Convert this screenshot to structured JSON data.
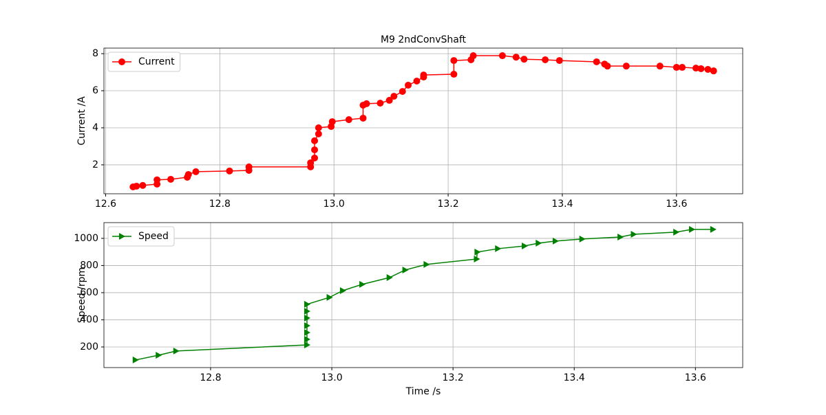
{
  "chart_data": [
    {
      "type": "line",
      "title": "M9 2ndConvShaft",
      "ylabel": "Current /A",
      "grid": true,
      "legend": "upper left",
      "x": [
        12.648,
        12.654,
        12.665,
        12.69,
        12.69,
        12.714,
        12.743,
        12.745,
        12.758,
        12.817,
        12.851,
        12.851,
        12.959,
        12.959,
        12.966,
        12.966,
        12.966,
        12.973,
        12.973,
        12.995,
        12.997,
        13.026,
        13.051,
        13.051,
        13.057,
        13.081,
        13.097,
        13.105,
        13.12,
        13.13,
        13.145,
        13.157,
        13.157,
        13.21,
        13.21,
        13.24,
        13.244,
        13.295,
        13.319,
        13.333,
        13.37,
        13.395,
        13.46,
        13.474,
        13.479,
        13.512,
        13.571,
        13.6,
        13.61,
        13.634,
        13.643,
        13.655,
        13.665
      ],
      "series": [
        {
          "name": "Current",
          "color": "#ff0000",
          "marker": "circle",
          "values": [
            0.81,
            0.85,
            0.89,
            0.96,
            1.19,
            1.22,
            1.33,
            1.48,
            1.63,
            1.67,
            1.7,
            1.89,
            1.89,
            2.11,
            2.37,
            2.81,
            3.3,
            3.67,
            4.0,
            4.07,
            4.33,
            4.44,
            4.52,
            5.22,
            5.3,
            5.33,
            5.48,
            5.7,
            5.96,
            6.3,
            6.52,
            6.74,
            6.85,
            6.89,
            7.63,
            7.67,
            7.89,
            7.89,
            7.81,
            7.7,
            7.67,
            7.63,
            7.56,
            7.44,
            7.33,
            7.33,
            7.33,
            7.26,
            7.26,
            7.22,
            7.19,
            7.15,
            7.07
          ]
        }
      ],
      "xlim": [
        12.597,
        13.716
      ],
      "ylim": [
        0.44,
        8.3
      ],
      "xticks": [
        12.6,
        12.8,
        {
          "value": 13,
          "label": "13.0"
        },
        13.2,
        13.4,
        13.6
      ],
      "yticks": [
        2,
        4,
        6,
        8
      ]
    },
    {
      "type": "line",
      "xlabel": "Time /s",
      "ylabel": "Speed /rpm",
      "grid": true,
      "legend": "upper left",
      "x": [
        12.676,
        12.714,
        12.743,
        12.959,
        12.959,
        12.959,
        12.959,
        12.959,
        12.959,
        12.959,
        12.996,
        13.018,
        13.05,
        13.095,
        13.121,
        13.156,
        13.239,
        13.24,
        13.274,
        13.318,
        13.341,
        13.369,
        13.413,
        13.476,
        13.498,
        13.568,
        13.594,
        13.629
      ],
      "series": [
        {
          "name": "Speed",
          "color": "#008000",
          "marker": "triangle-right",
          "values": [
            104,
            139,
            170,
            215,
            256,
            306,
            357,
            413,
            463,
            514,
            565,
            615,
            661,
            711,
            767,
            808,
            848,
            899,
            924,
            944,
            965,
            980,
            995,
            1010,
            1030,
            1046,
            1066,
            1066
          ]
        }
      ],
      "xlim": [
        12.624,
        13.678
      ],
      "ylim": [
        48,
        1116
      ],
      "xticks": [
        12.8,
        {
          "value": 13,
          "label": "13.0"
        },
        13.2,
        13.4,
        13.6
      ],
      "yticks": [
        200,
        400,
        600,
        800,
        1000
      ]
    }
  ]
}
